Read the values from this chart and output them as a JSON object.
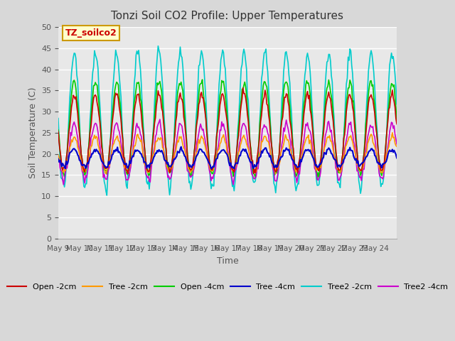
{
  "title": "Tonzi Soil CO2 Profile: Upper Temperatures",
  "xlabel": "Time",
  "ylabel": "Soil Temperature (C)",
  "annotation": "TZ_soilco2",
  "ylim": [
    0,
    50
  ],
  "yticks": [
    0,
    5,
    10,
    15,
    20,
    25,
    30,
    35,
    40,
    45,
    50
  ],
  "x_labels": [
    "May 9",
    "May 10",
    "May 11",
    "May 12",
    "May 13",
    "May 14",
    "May 15",
    "May 16",
    "May 17",
    "May 18",
    "May 19",
    "May 20",
    "May 21",
    "May 22",
    "May 23",
    "May 24"
  ],
  "bg_color": "#e8e8e8",
  "annotation_bg": "#ffffcc",
  "annotation_fg": "#cc0000",
  "annotation_border": "#cc9900",
  "series_colors": {
    "Open -2cm": "#cc0000",
    "Tree -2cm": "#ff9900",
    "Open -4cm": "#00cc00",
    "Tree -4cm": "#0000cc",
    "Tree2 -2cm": "#00cccc",
    "Tree2 -4cm": "#cc00cc"
  }
}
